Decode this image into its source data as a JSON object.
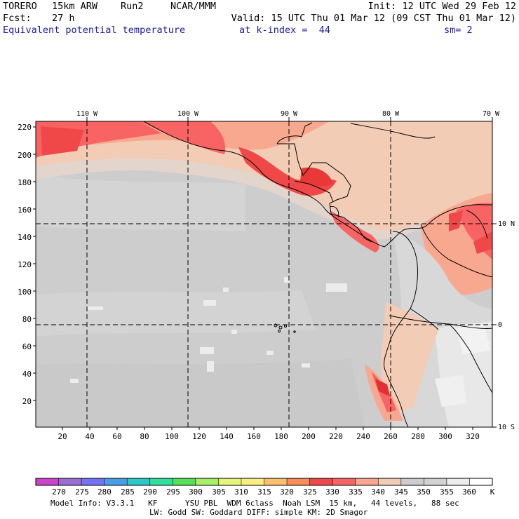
{
  "header": {
    "model": "TORERO",
    "resolution": "15km ARW",
    "run": "Run2",
    "org": "NCAR/MMM",
    "init": "Init: 12 UTC Wed 29 Feb 12",
    "fcst_label": "Fcst:",
    "fcst_value": "27 h",
    "valid": "Valid: 15 UTC Thu 01 Mar 12 (09 CST Thu 01 Mar 12)",
    "field": "Equivalent potential temperature",
    "level": "at k-index =  44",
    "smooth": "sm= 2"
  },
  "map": {
    "lon_labels": [
      "110 W",
      "100 W",
      "90 W",
      "80 W",
      "70 W"
    ],
    "lat_labels": [
      "10 N",
      "0",
      "10 S"
    ],
    "y_ticks": [
      "220",
      "200",
      "180",
      "160",
      "140",
      "120",
      "100",
      "80",
      "60",
      "40",
      "20"
    ],
    "x_ticks": [
      "20",
      "40",
      "60",
      "80",
      "100",
      "120",
      "140",
      "160",
      "180",
      "200",
      "220",
      "240",
      "260",
      "280",
      "300",
      "320"
    ]
  },
  "colorbar": {
    "labels": [
      "270",
      "275",
      "280",
      "285",
      "290",
      "295",
      "300",
      "305",
      "310",
      "315",
      "320",
      "325",
      "330",
      "335",
      "340",
      "345",
      "350",
      "355",
      "360"
    ],
    "unit": "K",
    "colors": [
      "#c844c8",
      "#9a6ed2",
      "#7474f0",
      "#4a9ee6",
      "#2cc8c8",
      "#2ee0a0",
      "#56e058",
      "#a8f068",
      "#e6f47c",
      "#faee82",
      "#fcc070",
      "#fa8c5c",
      "#f04848",
      "#f86464",
      "#f9a890",
      "#f2ccb4",
      "#cdcdcd",
      "#d2d2d2",
      "#ececec",
      "#ffffff"
    ]
  },
  "footer": {
    "line1": "Model Info: V3.3.1   KF      YSU PBL  WDM 6class  Noah LSM  15 km,   44 levels,   88 sec",
    "line2": "LW: Godd SW: Goddard DIFF: simple KM: 2D Smagor"
  }
}
